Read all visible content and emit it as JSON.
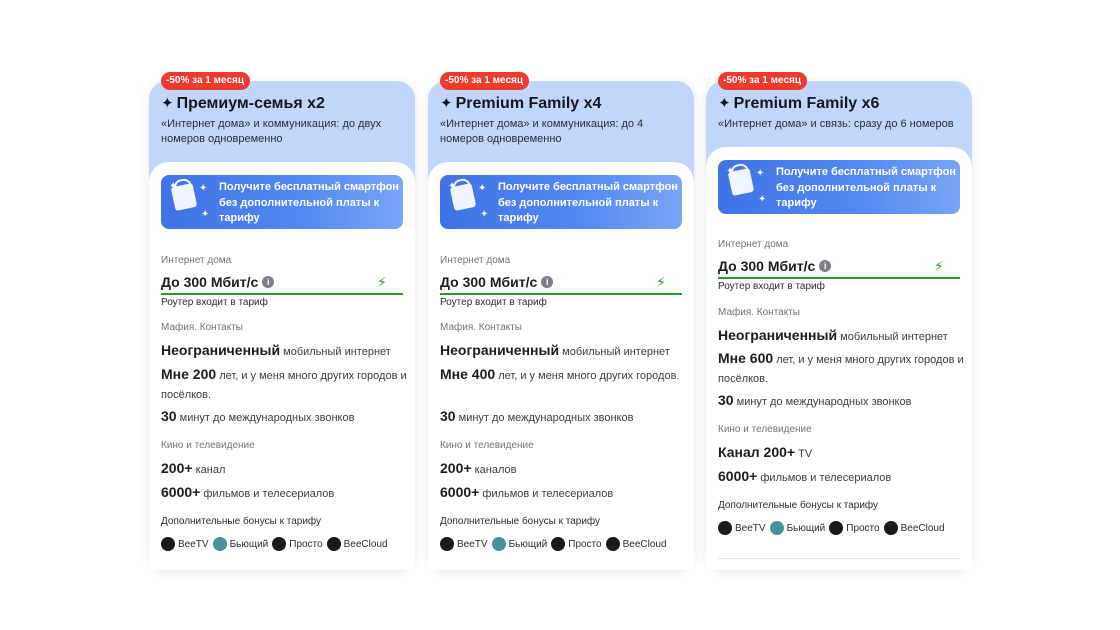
{
  "cards": [
    {
      "badge": "-50% за 1 месяц",
      "title": "Премиум-семья x2",
      "subtitle": "«Интернет дома» и коммуникация: до двух номеров одновременно",
      "promo": "Получите бесплатный смартфон без дополнительной платы к тарифу",
      "internet_label": "Интернет дома",
      "speed": "До 300 Мбит/с",
      "router": "Роутер входит в тариф",
      "mobile_label": "Мафия. Контакты",
      "unlimited_strong": "Неограниченный",
      "unlimited_rest": " мобильный интернет",
      "age_strong": "Мне 200",
      "age_rest": "  лет, и у меня много других городов и посёлков.",
      "minutes_strong": "30",
      "minutes_rest": " минут до международных звонков",
      "tv_label": "Кино и телевидение",
      "channels_strong": "200+",
      "channels_rest": " канал",
      "films_strong": "6000+",
      "films_rest": "  фильмов и телесериалов",
      "bonus_label": "Дополнительные бонусы к тарифу",
      "bonuses": [
        "BeeTV",
        "Бьющий",
        "Просто",
        "BeeCloud"
      ]
    },
    {
      "badge": "-50% за 1 месяц",
      "title": "Premium Family x4",
      "subtitle": "«Интернет дома» и коммуникация: до 4 номеров одновременно",
      "promo": "Получите бесплатный смартфон без дополнительной платы к тарифу",
      "internet_label": "Интернет дома",
      "speed": "До 300 Мбит/с",
      "router": "Роутер входит в тариф",
      "mobile_label": "Мафия. Контакты",
      "unlimited_strong": "Неограниченный",
      "unlimited_rest": " мобильный интернет",
      "age_strong": "Мне 400",
      "age_rest": "  лет, и у меня много других городов.",
      "minutes_strong": "30",
      "minutes_rest": " минут до международных звонков",
      "tv_label": "Кино и телевидение",
      "channels_strong": "200+",
      "channels_rest": "  каналов",
      "films_strong": "6000+",
      "films_rest": "  фильмов и телесериалов",
      "bonus_label": "Дополнительные бонусы к тарифу",
      "bonuses": [
        "BeeTV",
        "Бьющий",
        "Просто",
        "BeeCloud"
      ]
    },
    {
      "badge": "-50% за 1 месяц",
      "title": "Premium Family x6",
      "subtitle": "«Интернет дома» и связь: сразу до 6 номеров",
      "promo": "Получите бесплатный смартфон без дополнительной платы к тарифу",
      "internet_label": "Интернет дома",
      "speed": "До 300 Мбит/с",
      "router": "Роутер входит в тариф",
      "mobile_label": "Мафия. Контакты",
      "unlimited_strong": "Неограниченный",
      "unlimited_rest": " мобильный интернет",
      "age_strong": "Мне 600",
      "age_rest": "  лет, и у меня много других городов и посёлков.",
      "minutes_strong": "30",
      "minutes_rest": " минут до международных звонков",
      "tv_label": "Кино и телевидение",
      "channels_strong": "Канал 200+",
      "channels_rest": " TV",
      "films_strong": "6000+",
      "films_rest": "  фильмов и телесериалов",
      "bonus_label": "Дополнительные бонусы к тарифу",
      "bonuses": [
        "BeeTV",
        "Бьющий",
        "Просто",
        "BeeCloud"
      ]
    }
  ]
}
